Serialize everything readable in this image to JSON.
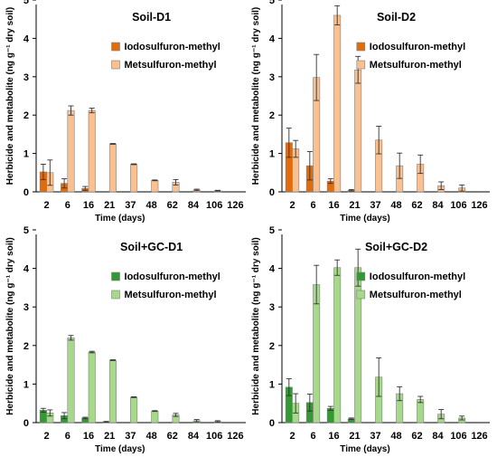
{
  "chart_data": [
    {
      "type": "bar",
      "title": "Soil-D1",
      "xlabel": "Time (days)",
      "ylabel": "Herbicide and metabolite (ng g⁻¹ dry soil)",
      "ylim": [
        0,
        5
      ],
      "yticks": [
        0,
        1,
        2,
        3,
        4,
        5
      ],
      "categories": [
        "2",
        "6",
        "16",
        "21",
        "37",
        "48",
        "62",
        "84",
        "106",
        "126"
      ],
      "legend_position": "top-right",
      "series": [
        {
          "name": "Iodosulfuron-methyl",
          "color": "#E36C0A",
          "values": [
            0.52,
            0.22,
            0.09,
            0.0,
            0.0,
            0.0,
            0.0,
            0.0,
            0.0,
            0.0
          ],
          "errors": [
            0.2,
            0.12,
            0.05,
            0,
            0,
            0,
            0,
            0,
            0,
            0
          ]
        },
        {
          "name": "Metsulfuron-methyl",
          "color": "#FAC090",
          "values": [
            0.5,
            2.12,
            2.12,
            1.25,
            0.72,
            0.3,
            0.25,
            0.05,
            0.03,
            0.0
          ],
          "errors": [
            0.33,
            0.12,
            0.06,
            0.01,
            0.01,
            0.01,
            0.07,
            0.02,
            0.01,
            0
          ]
        }
      ]
    },
    {
      "type": "bar",
      "title": "Soil-D2",
      "xlabel": "Time (days)",
      "ylabel": "Herbicide and metabolite (ng g⁻¹ dry soil)",
      "ylim": [
        0,
        5
      ],
      "yticks": [
        0,
        1,
        2,
        3,
        4,
        5
      ],
      "categories": [
        "2",
        "6",
        "16",
        "21",
        "37",
        "48",
        "62",
        "84",
        "106",
        "126"
      ],
      "legend_position": "top-right",
      "series": [
        {
          "name": "Iodosulfuron-methyl",
          "color": "#E36C0A",
          "values": [
            1.28,
            0.68,
            0.28,
            0.04,
            0.0,
            0.0,
            0.0,
            0.0,
            0.0,
            0.0
          ],
          "errors": [
            0.38,
            0.37,
            0.06,
            0.02,
            0,
            0,
            0,
            0,
            0,
            0
          ]
        },
        {
          "name": "Metsulfuron-methyl",
          "color": "#FAC090",
          "values": [
            1.12,
            2.98,
            4.6,
            3.18,
            1.35,
            0.68,
            0.72,
            0.16,
            0.1,
            0.0
          ],
          "errors": [
            0.22,
            0.6,
            0.25,
            0.35,
            0.36,
            0.33,
            0.24,
            0.1,
            0.08,
            0
          ]
        }
      ]
    },
    {
      "type": "bar",
      "title": "Soil+GC-D1",
      "xlabel": "Time (days)",
      "ylabel": "Herbicide and metabolite (ng g⁻¹ dry soil)",
      "ylim": [
        0,
        5
      ],
      "yticks": [
        0,
        1,
        2,
        3,
        4,
        5
      ],
      "categories": [
        "2",
        "6",
        "16",
        "21",
        "37",
        "48",
        "62",
        "84",
        "106",
        "126"
      ],
      "legend_position": "top-right",
      "series": [
        {
          "name": "Iodosulfuron-methyl",
          "color": "#339933",
          "values": [
            0.32,
            0.18,
            0.12,
            0.02,
            0.0,
            0.0,
            0.0,
            0.0,
            0.0,
            0.0
          ],
          "errors": [
            0.05,
            0.08,
            0.02,
            0.01,
            0,
            0,
            0,
            0,
            0,
            0
          ]
        },
        {
          "name": "Metsulfuron-methyl",
          "color": "#A6DA8A",
          "values": [
            0.25,
            2.2,
            1.83,
            1.62,
            0.66,
            0.3,
            0.2,
            0.05,
            0.03,
            0.0
          ],
          "errors": [
            0.08,
            0.06,
            0.02,
            0.01,
            0.01,
            0.01,
            0.04,
            0.03,
            0.02,
            0
          ]
        }
      ]
    },
    {
      "type": "bar",
      "title": "Soil+GC-D2",
      "xlabel": "Time (days)",
      "ylabel": "Herbicide and metabolite (ng g⁻¹ dry soil)",
      "ylim": [
        0,
        5
      ],
      "yticks": [
        0,
        1,
        2,
        3,
        4,
        5
      ],
      "categories": [
        "2",
        "6",
        "16",
        "21",
        "37",
        "48",
        "62",
        "84",
        "106",
        "126"
      ],
      "legend_position": "top-right",
      "series": [
        {
          "name": "Iodosulfuron-methyl",
          "color": "#339933",
          "values": [
            0.92,
            0.52,
            0.37,
            0.1,
            0.0,
            0.0,
            0.0,
            0.0,
            0.0,
            0.0
          ],
          "errors": [
            0.22,
            0.22,
            0.05,
            0.02,
            0,
            0,
            0,
            0,
            0,
            0
          ]
        },
        {
          "name": "Metsulfuron-methyl",
          "color": "#A6DA8A",
          "values": [
            0.5,
            3.58,
            4.02,
            4.02,
            1.18,
            0.75,
            0.6,
            0.22,
            0.12,
            0.0
          ],
          "errors": [
            0.25,
            0.5,
            0.2,
            0.48,
            0.5,
            0.18,
            0.08,
            0.12,
            0.05,
            0
          ]
        }
      ]
    }
  ]
}
